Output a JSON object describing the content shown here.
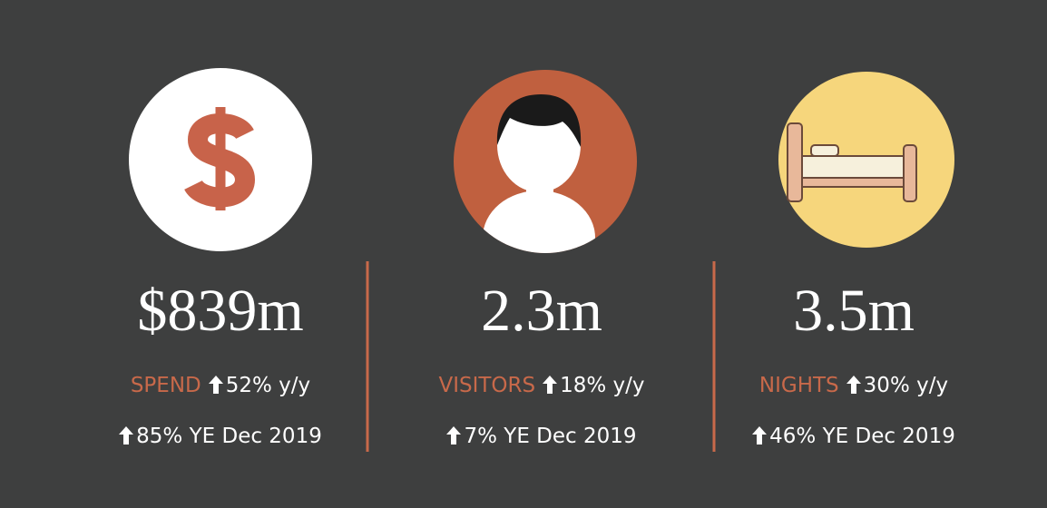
{
  "panels": [
    {
      "value": "$839m",
      "label": "SPEND",
      "change": "52% y/y",
      "year_end": "85% YE Dec 2019"
    },
    {
      "value": "2.3m",
      "label": "VISITORS",
      "change": "18% y/y",
      "year_end": "7% YE Dec 2019"
    },
    {
      "value": "3.5m",
      "label": "NIGHTS",
      "change": "30% y/y",
      "year_end": "46% YE Dec 2019"
    }
  ]
}
